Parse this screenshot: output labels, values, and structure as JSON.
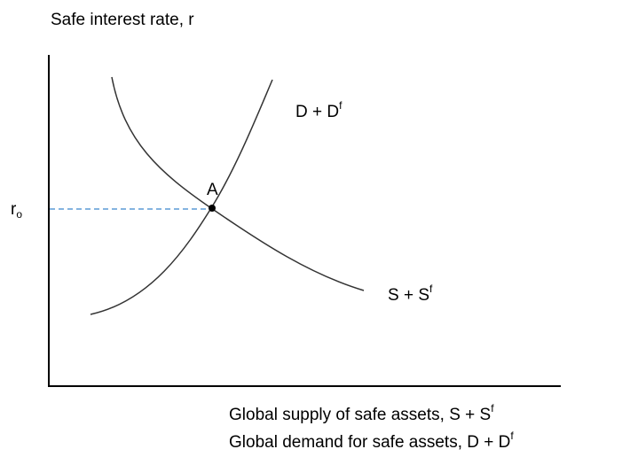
{
  "y_axis": {
    "label": "Safe interest rate, r"
  },
  "x_axis": {
    "labels": [
      {
        "text": "Global supply of safe assets, S + S",
        "superscript": "f"
      },
      {
        "text": "Global demand for safe assets, D + D",
        "superscript": "f"
      }
    ]
  },
  "curves": [
    {
      "text": "D + D",
      "superscript": "f"
    },
    {
      "text": "S + S",
      "superscript": "f"
    }
  ],
  "point": {
    "label": "A"
  },
  "level": {
    "text": "r",
    "subscript": "o"
  }
}
